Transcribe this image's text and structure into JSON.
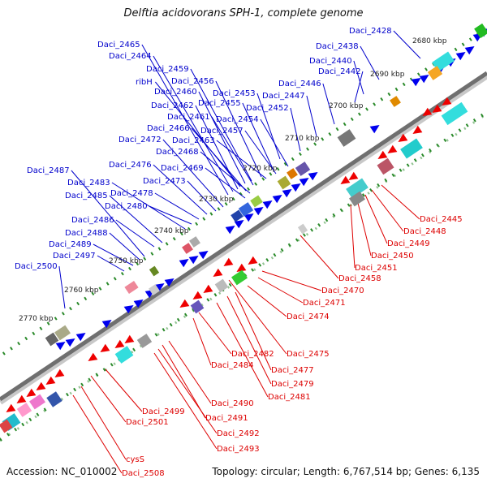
{
  "title": "Delftia acidovorans SPH-1, complete genome",
  "accession": "Accession: NC_010002",
  "topology": "Topology: circular; Length: 6,767,514 bp; Genes: 6,135",
  "colors": {
    "forward_label": "#0000cc",
    "reverse_label": "#dd0000",
    "forward_gene": "#0000ee",
    "reverse_gene": "#ee0000",
    "track": "#2a8a2a",
    "backbone": "#6f6f6f"
  },
  "kbp_markers": [
    "2680 kbp",
    "2690 kbp",
    "2700 kbp",
    "2710 kbp",
    "2720 kbp",
    "2730 kbp",
    "2740 kbp",
    "2750 kbp",
    "2760 kbp",
    "2770 kbp"
  ],
  "forward_genes": [
    "Daci_2428",
    "Daci_2438",
    "Daci_2440",
    "Daci_2442",
    "Daci_2446",
    "Daci_2447",
    "Daci_2452",
    "Daci_2453",
    "Daci_2454",
    "Daci_2455",
    "Daci_2456",
    "Daci_2457",
    "Daci_2459",
    "Daci_2460",
    "ribH",
    "Daci_2461",
    "Daci_2462",
    "Daci_2463",
    "Daci_2464",
    "Daci_2465",
    "Daci_2466",
    "Daci_2468",
    "Daci_2469",
    "Daci_2472",
    "Daci_2473",
    "Daci_2476",
    "Daci_2478",
    "Daci_2480",
    "Daci_2483",
    "Daci_2485",
    "Daci_2486",
    "Daci_2487",
    "Daci_2488",
    "Daci_2489",
    "Daci_2497",
    "Daci_2500"
  ],
  "reverse_genes": [
    "Daci_2445",
    "Daci_2448",
    "Daci_2449",
    "Daci_2450",
    "Daci_2451",
    "Daci_2458",
    "Daci_2470",
    "Daci_2471",
    "Daci_2474",
    "Daci_2475",
    "Daci_2477",
    "Daci_2479",
    "Daci_2481",
    "Daci_2482",
    "Daci_2484",
    "Daci_2490",
    "Daci_2491",
    "Daci_2492",
    "Daci_2493",
    "Daci_2499",
    "Daci_2501",
    "cysS",
    "Daci_2508"
  ]
}
